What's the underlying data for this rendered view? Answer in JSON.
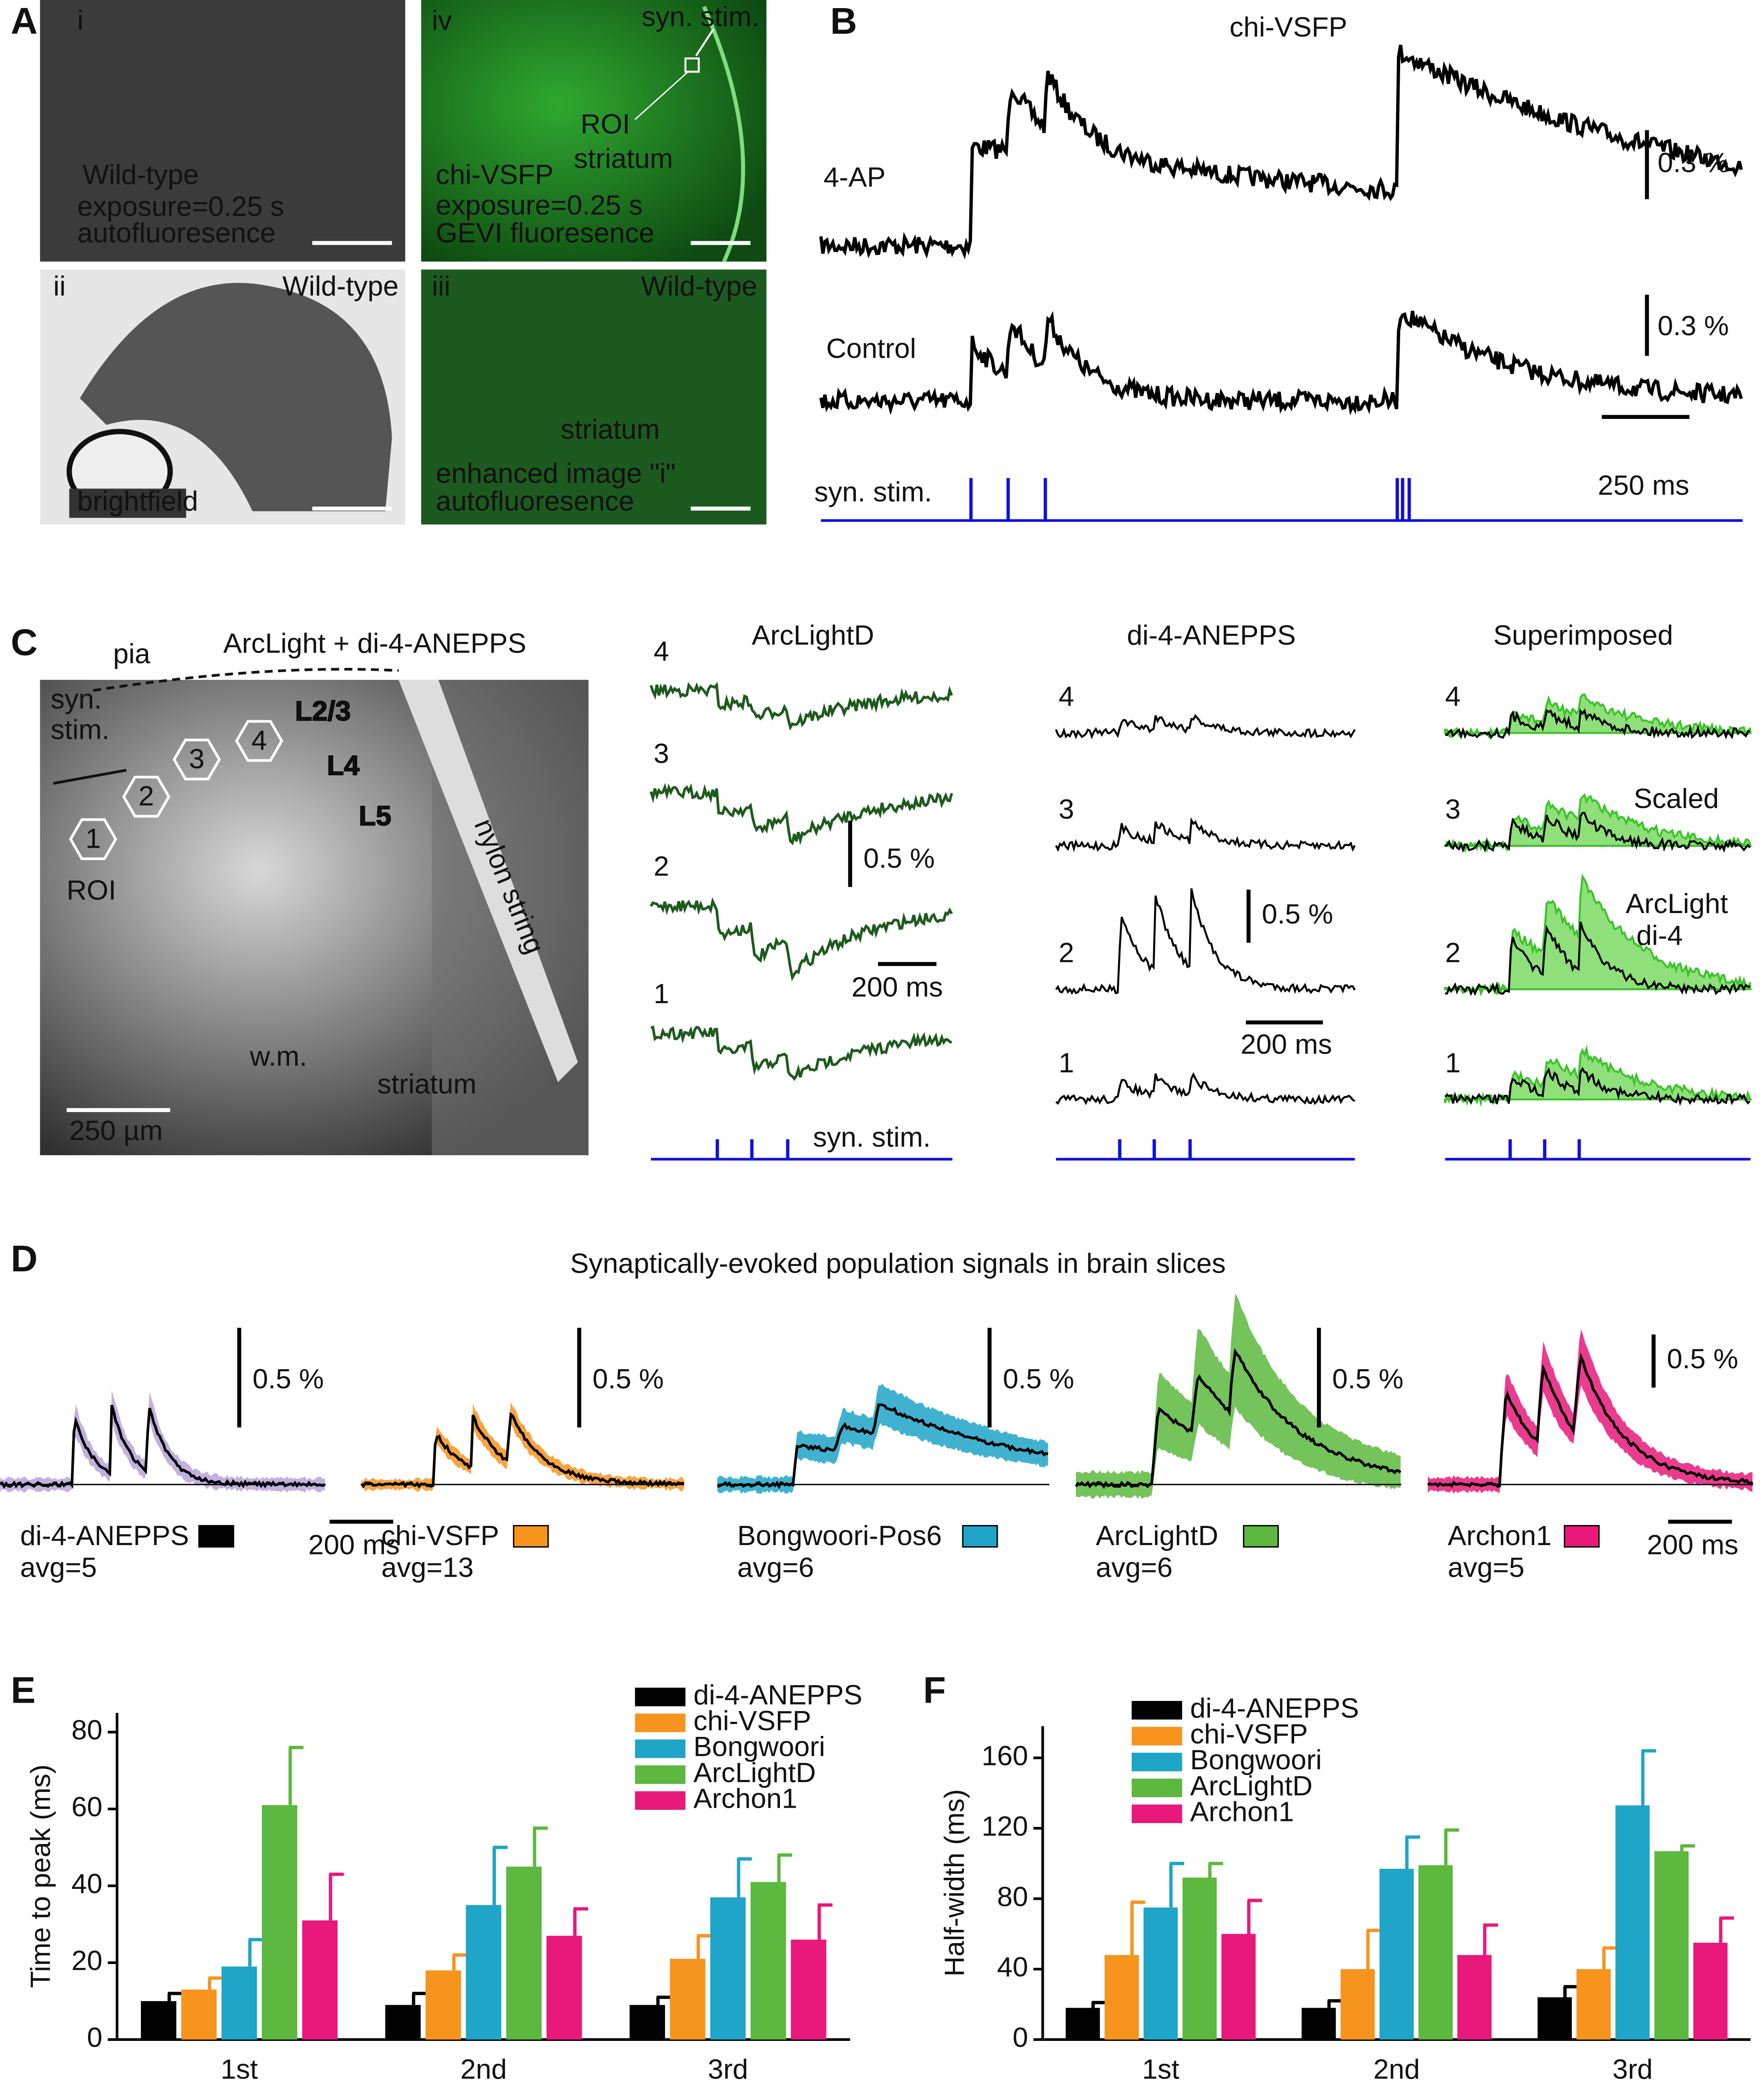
{
  "panel_labels": [
    "A",
    "B",
    "C",
    "D",
    "E",
    "F"
  ],
  "panel_a": {
    "i": [
      "i",
      "Wild-type",
      "exposure=0.25 s",
      "autofluoresence"
    ],
    "ii": [
      "ii",
      "Wild-type",
      "brightfield"
    ],
    "iii": [
      "iii",
      "Wild-type",
      "striatum",
      "enhanced image \"i\"",
      "autofluoresence"
    ],
    "iv": [
      "iv",
      "syn. stim.",
      "ROI",
      "striatum",
      "chi-VSFP",
      "exposure=0.25 s",
      "GEVI fluoresence"
    ]
  },
  "panel_b": {
    "title": "chi-VSFP",
    "traces": [
      "4-AP",
      "Control"
    ],
    "scale_y": "0.3 %",
    "scale_x": "250 ms",
    "stim": "syn. stim."
  },
  "panel_c": {
    "image_title": "ArcLight + di-4-ANEPPS",
    "image_labels": [
      "pia",
      "syn.",
      "stim.",
      "L2/3",
      "L4",
      "L5",
      "nylon string",
      "ROI",
      "w.m.",
      "striatum",
      "250 µm"
    ],
    "roi_numbers": [
      "1",
      "2",
      "3",
      "4"
    ],
    "columns": [
      "ArcLightD",
      "di-4-ANEPPS",
      "Superimposed"
    ],
    "trace_numbers": [
      "4",
      "3",
      "2",
      "1"
    ],
    "scale_y": "0.5 %",
    "scale_x": "200 ms",
    "stim": "syn. stim.",
    "superimposed_labels": [
      "Scaled",
      "ArcLight",
      "di-4"
    ]
  },
  "panel_d": {
    "title": "Synaptically-evoked population signals in brain slices",
    "indicators": [
      {
        "name": "di-4-ANEPPS",
        "avg": "avg=5",
        "color": "#000000",
        "band": "#b7a3d8"
      },
      {
        "name": "chi-VSFP",
        "avg": "avg=13",
        "color": "#f7941d",
        "band": "#f7941d"
      },
      {
        "name": "Bongwoori-Pos6",
        "avg": "avg=6",
        "color": "#1ea5c8",
        "band": "#1ea5c8"
      },
      {
        "name": "ArcLightD",
        "avg": "avg=6",
        "color": "#5cb83e",
        "band": "#5cb83e"
      },
      {
        "name": "Archon1",
        "avg": "avg=5",
        "color": "#e8197a",
        "band": "#e8197a"
      }
    ],
    "scale_y": "0.5 %",
    "scale_x": "200 ms"
  },
  "chart_data": [
    {
      "type": "bar",
      "ylabel": "Time to peak (ms)",
      "categories": [
        "1st",
        "2nd",
        "3rd"
      ],
      "ylim": [
        0,
        85
      ],
      "yticks": [
        0,
        20,
        40,
        60,
        80
      ],
      "legend": "upper right",
      "series": [
        {
          "name": "di-4-ANEPPS",
          "color": "#000000",
          "values": [
            10,
            9,
            9
          ],
          "errors": [
            2,
            3,
            2
          ]
        },
        {
          "name": "chi-VSFP",
          "color": "#f7941d",
          "values": [
            13,
            18,
            21
          ],
          "errors": [
            3,
            4,
            6
          ]
        },
        {
          "name": "Bongwoori",
          "color": "#1ea5c8",
          "values": [
            19,
            35,
            37
          ],
          "errors": [
            7,
            15,
            10
          ]
        },
        {
          "name": "ArcLightD",
          "color": "#5cb83e",
          "values": [
            61,
            45,
            41
          ],
          "errors": [
            15,
            10,
            7
          ]
        },
        {
          "name": "Archon1",
          "color": "#e8197a",
          "values": [
            31,
            27,
            26
          ],
          "errors": [
            12,
            7,
            9
          ]
        }
      ]
    },
    {
      "type": "bar",
      "ylabel": "Half-width (ms)",
      "categories": [
        "1st",
        "2nd",
        "3rd"
      ],
      "ylim": [
        0,
        178
      ],
      "yticks": [
        0,
        40,
        80,
        120,
        160
      ],
      "legend": "upper left",
      "series": [
        {
          "name": "di-4-ANEPPS",
          "color": "#000000",
          "values": [
            18,
            18,
            24
          ],
          "errors": [
            3,
            4,
            6
          ]
        },
        {
          "name": "chi-VSFP",
          "color": "#f7941d",
          "values": [
            48,
            40,
            40
          ],
          "errors": [
            30,
            22,
            12
          ]
        },
        {
          "name": "Bongwoori",
          "color": "#1ea5c8",
          "values": [
            75,
            97,
            133
          ],
          "errors": [
            25,
            18,
            31
          ]
        },
        {
          "name": "ArcLightD",
          "color": "#5cb83e",
          "values": [
            92,
            99,
            107
          ],
          "errors": [
            8,
            20,
            3
          ]
        },
        {
          "name": "Archon1",
          "color": "#e8197a",
          "values": [
            60,
            48,
            55
          ],
          "errors": [
            19,
            17,
            14
          ]
        }
      ]
    }
  ]
}
